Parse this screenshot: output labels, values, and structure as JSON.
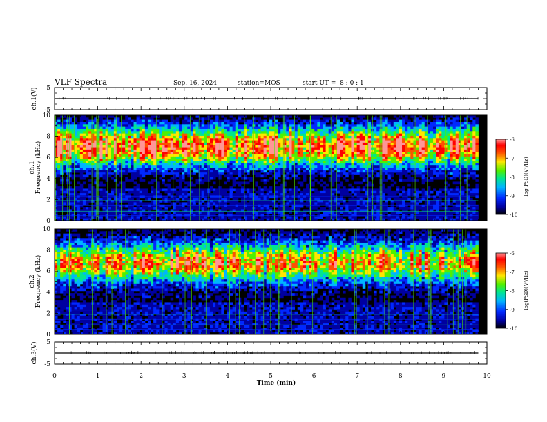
{
  "header": {
    "title": "VLF Spectra",
    "date": "Sep. 16, 2024",
    "station": "station=MOS",
    "start": "start UT =  8 : 0 : 1"
  },
  "colors": {
    "colormap": [
      "#000000",
      "#0000a0",
      "#0028ff",
      "#00b4ff",
      "#00e690",
      "#50f000",
      "#ffe600",
      "#ff5000",
      "#ff0000",
      "#ff9696"
    ],
    "line": "#000000",
    "background": "#ffffff"
  },
  "chart_data": [
    {
      "type": "line",
      "panel": "ch1_waveform",
      "ylabel": "ch.1(V)",
      "ylim": [
        -5,
        5
      ],
      "yticks": [
        "5",
        "-5"
      ],
      "xlim": [
        0,
        10
      ],
      "baseline": 0
    },
    {
      "type": "heatmap",
      "panel": "ch1_spectrogram",
      "ylabel": "ch.1\nFrequency (kHz)",
      "ylim": [
        0,
        10
      ],
      "yticks": [
        "0",
        "2",
        "4",
        "6",
        "8",
        "10"
      ],
      "xlim": [
        0,
        10
      ],
      "data_end_min": 9.8,
      "band_center_khz": 7.0,
      "colorbar": {
        "label": "log(PSD)(V²/Hz)",
        "range": [
          -10,
          -6
        ],
        "ticks": [
          "-6",
          "-7",
          "-8",
          "-9",
          "-10"
        ]
      }
    },
    {
      "type": "heatmap",
      "panel": "ch2_spectrogram",
      "ylabel": "ch.2\nFrequency (kHz)",
      "ylim": [
        0,
        10
      ],
      "yticks": [
        "0",
        "2",
        "4",
        "6",
        "8",
        "10"
      ],
      "xlim": [
        0,
        10
      ],
      "data_end_min": 9.8,
      "band_center_khz": 6.8,
      "colorbar": {
        "label": "log(PSD)(V²/Hz)",
        "range": [
          -10,
          -6
        ],
        "ticks": [
          "-6",
          "-7",
          "-8",
          "-9",
          "-10"
        ]
      }
    },
    {
      "type": "line",
      "panel": "ch3_waveform",
      "ylabel": "ch.3(V)",
      "ylim": [
        -5,
        5
      ],
      "yticks": [
        "5",
        "-5"
      ],
      "xlim": [
        0,
        10
      ],
      "baseline": 0
    }
  ],
  "xaxis": {
    "label": "Time (min)",
    "ticks": [
      "0",
      "1",
      "2",
      "3",
      "4",
      "5",
      "6",
      "7",
      "8",
      "9",
      "10"
    ]
  }
}
